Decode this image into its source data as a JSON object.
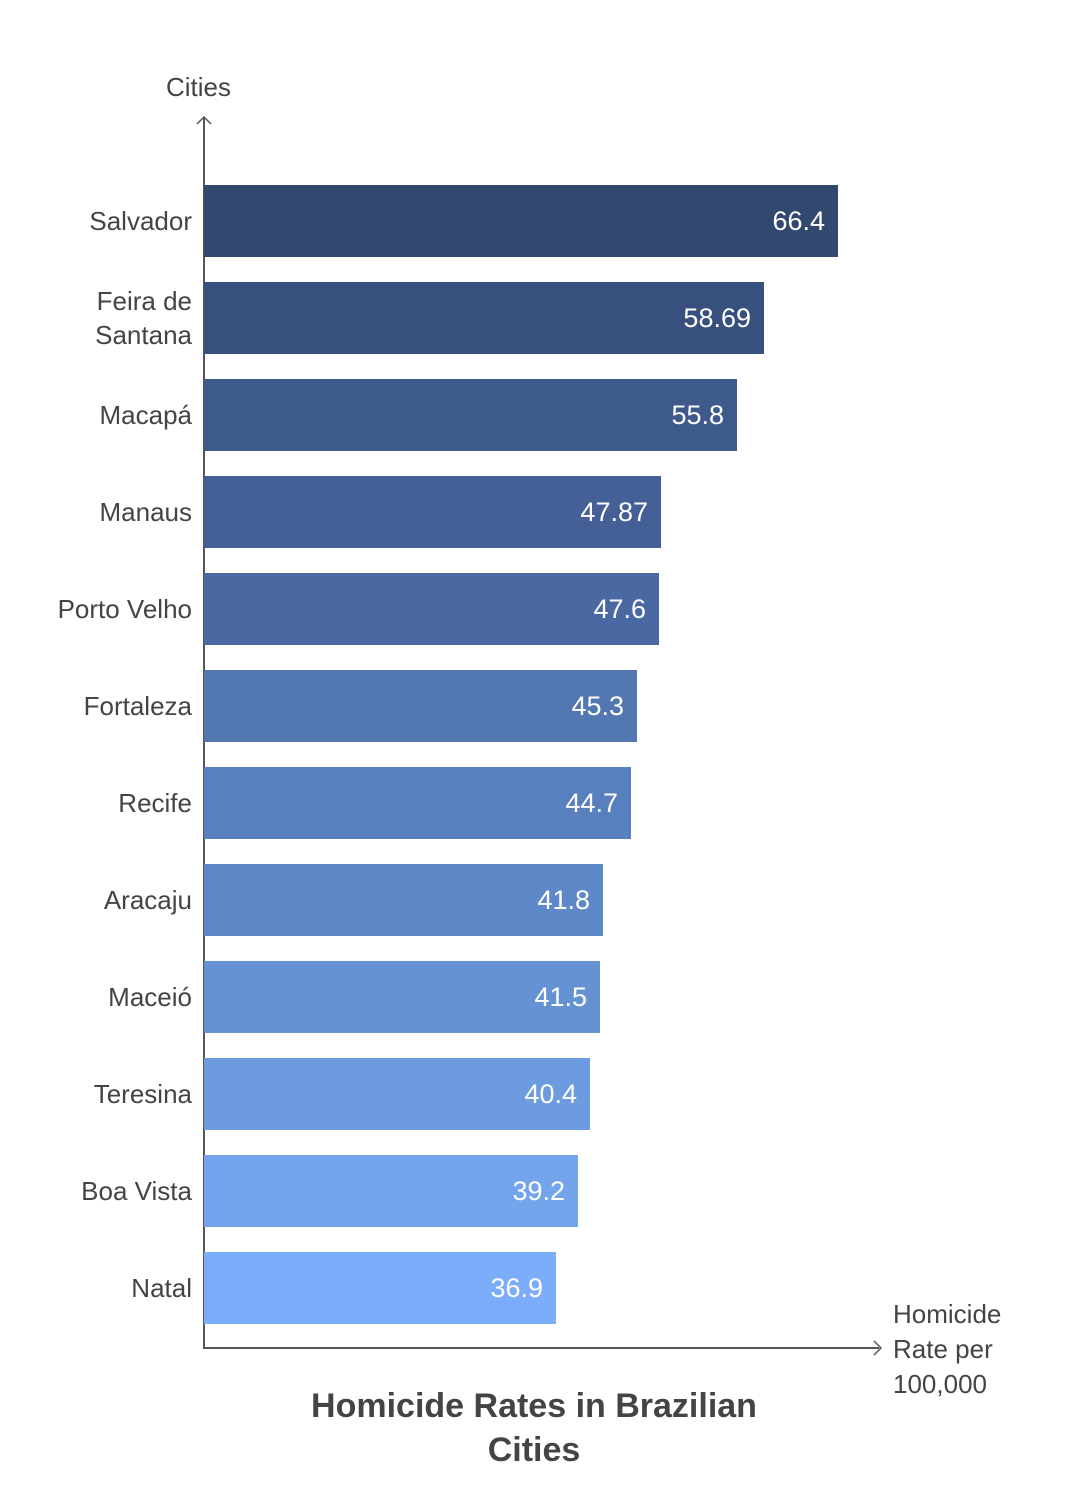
{
  "chart_data": {
    "type": "bar",
    "orientation": "horizontal",
    "title": "Homicide Rates in Brazilian Cities",
    "xlabel": "Homicide Rate per 100,000",
    "ylabel": "Cities",
    "categories": [
      "Salvador",
      "Feira de Santana",
      "Macapá",
      "Manaus",
      "Porto Velho",
      "Fortaleza",
      "Recife",
      "Aracaju",
      "Maceió",
      "Teresina",
      "Boa Vista",
      "Natal"
    ],
    "values": [
      66.4,
      58.69,
      55.8,
      47.87,
      47.6,
      45.3,
      44.7,
      41.8,
      41.5,
      40.4,
      39.2,
      36.9
    ],
    "data_labels": [
      "66.4",
      "58.69",
      "55.8",
      "47.87",
      "47.6",
      "45.3",
      "44.7",
      "41.8",
      "41.5",
      "40.4",
      "39.2",
      "36.9"
    ],
    "colors": [
      "#33486f",
      "#37507e",
      "#3d5a8a",
      "#455f97",
      "#4a69a2",
      "#5277b1",
      "#5880be",
      "#5f88c8",
      "#6592d3",
      "#6c9be0",
      "#73a4ec",
      "#7cadfa"
    ],
    "grid": false,
    "legend": null,
    "xlim": [
      0,
      70
    ]
  },
  "labels": {
    "y_axis": "Cities",
    "x_axis_line1": "Homicide",
    "x_axis_line2": "Rate per",
    "x_axis_line3": "100,000",
    "title_line1": "Homicide Rates in Brazilian",
    "title_line2": "Cities"
  },
  "bars": [
    {
      "label": "Salvador",
      "value": "66.4"
    },
    {
      "label": "Feira de Santana",
      "value": "58.69"
    },
    {
      "label": "Macapá",
      "value": "55.8"
    },
    {
      "label": "Manaus",
      "value": "47.87"
    },
    {
      "label": "Porto Velho",
      "value": "47.6"
    },
    {
      "label": "Fortaleza",
      "value": "45.3"
    },
    {
      "label": "Recife",
      "value": "44.7"
    },
    {
      "label": "Aracaju",
      "value": "41.8"
    },
    {
      "label": "Maceió",
      "value": "41.5"
    },
    {
      "label": "Teresina",
      "value": "40.4"
    },
    {
      "label": "Boa Vista",
      "value": "39.2"
    },
    {
      "label": "Natal",
      "value": "36.9"
    }
  ]
}
